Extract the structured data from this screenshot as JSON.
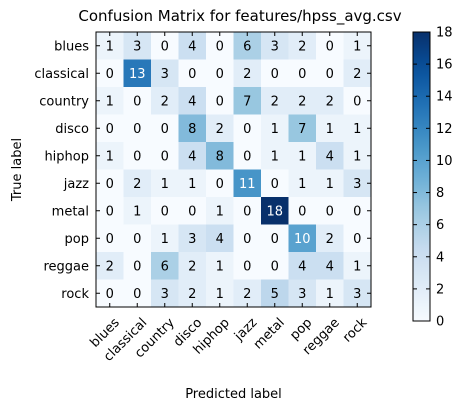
{
  "chart_data": {
    "type": "heatmap",
    "title": "Confusion Matrix for features/hpss_avg.csv",
    "xlabel": "Predicted label",
    "ylabel": "True label",
    "x_labels": [
      "blues",
      "classical",
      "country",
      "disco",
      "hiphop",
      "jazz",
      "metal",
      "pop",
      "reggae",
      "rock"
    ],
    "y_labels": [
      "blues",
      "classical",
      "country",
      "disco",
      "hiphop",
      "jazz",
      "metal",
      "pop",
      "reggae",
      "rock"
    ],
    "matrix": [
      [
        1,
        3,
        0,
        4,
        0,
        6,
        3,
        2,
        0,
        1
      ],
      [
        0,
        13,
        3,
        0,
        0,
        2,
        0,
        0,
        0,
        2
      ],
      [
        1,
        0,
        2,
        4,
        0,
        7,
        2,
        2,
        2,
        0
      ],
      [
        0,
        0,
        0,
        8,
        2,
        0,
        1,
        7,
        1,
        1
      ],
      [
        1,
        0,
        0,
        4,
        8,
        0,
        1,
        1,
        4,
        1
      ],
      [
        0,
        2,
        1,
        1,
        0,
        11,
        0,
        1,
        1,
        3
      ],
      [
        0,
        1,
        0,
        0,
        1,
        0,
        18,
        0,
        0,
        0
      ],
      [
        0,
        0,
        1,
        3,
        4,
        0,
        0,
        10,
        2,
        0
      ],
      [
        2,
        0,
        6,
        2,
        1,
        0,
        0,
        4,
        4,
        1
      ],
      [
        0,
        0,
        3,
        2,
        1,
        2,
        5,
        3,
        1,
        3
      ]
    ],
    "colorbar": {
      "colormap": "Blues",
      "range": [
        0,
        18
      ],
      "ticks": [
        "0",
        "2",
        "4",
        "6",
        "8",
        "10",
        "12",
        "14",
        "16",
        "18"
      ]
    }
  }
}
